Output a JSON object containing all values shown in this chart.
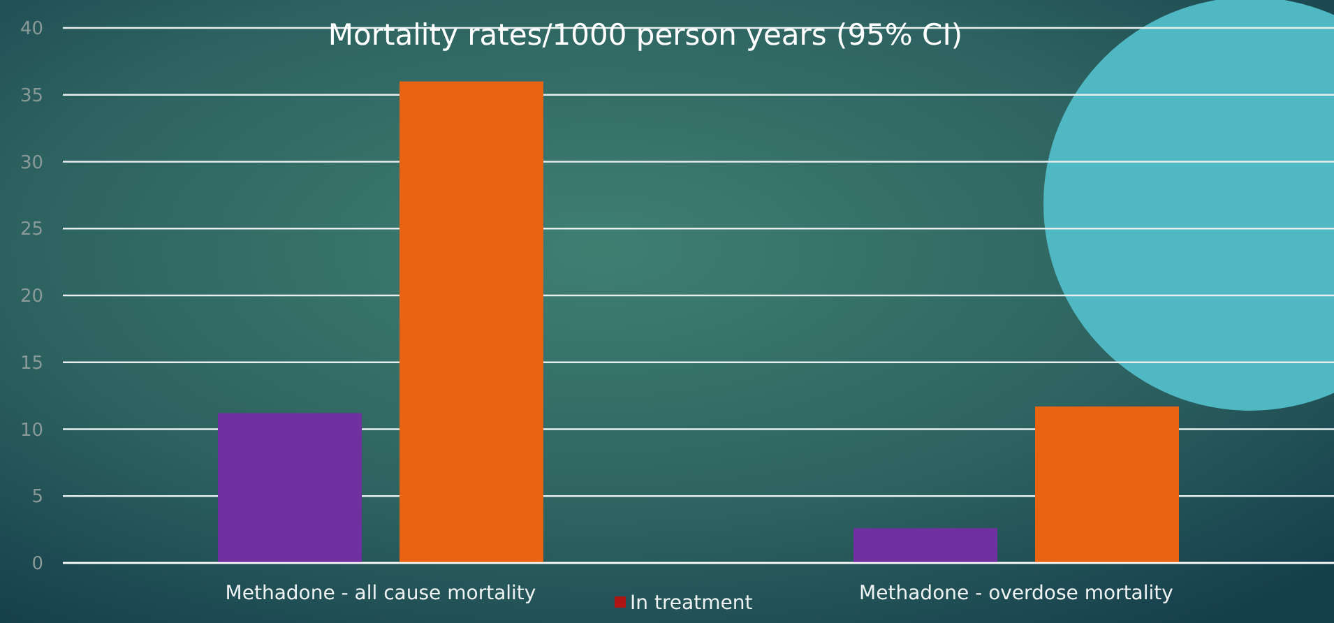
{
  "chart_data": {
    "type": "bar",
    "title": "Mortality rates/1000 person years (95% CI)",
    "categories": [
      "Methadone - all cause mortality",
      "Methadone - overdose mortality"
    ],
    "series": [
      {
        "color": "#7030a0",
        "values": [
          11.2,
          2.6
        ]
      },
      {
        "color": "#e86413",
        "values": [
          36,
          11.7
        ]
      },
      {
        "name": "In treatment",
        "color": "#b01515",
        "values": [
          null,
          null
        ]
      }
    ],
    "ylim": [
      0,
      40
    ],
    "yticks": [
      0,
      5,
      10,
      15,
      20,
      25,
      30,
      35,
      40
    ],
    "grid": "y",
    "legend": "bottom"
  }
}
